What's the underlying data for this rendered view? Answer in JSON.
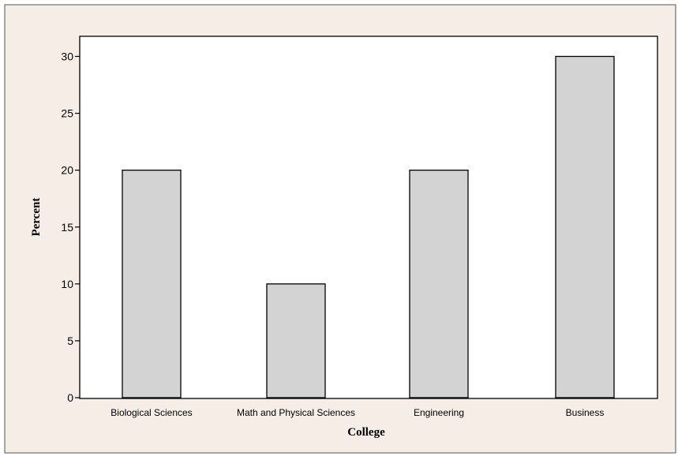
{
  "colors": {
    "outer_background": "#f5ede6",
    "plot_background": "#ffffff",
    "bar_fill": "#d3d3d3",
    "bar_stroke": "#000000",
    "axis_color": "#000000"
  },
  "chart_data": {
    "type": "bar",
    "title": "",
    "xlabel": "College",
    "ylabel": "Percent",
    "categories": [
      "Biological Sciences",
      "Math and Physical Sciences",
      "Engineering",
      "Business"
    ],
    "values": [
      20,
      10,
      20,
      30
    ],
    "ylim": [
      0,
      30
    ],
    "yticks": [
      0,
      5,
      10,
      15,
      20,
      25,
      30
    ],
    "grid": false,
    "legend": "none"
  }
}
